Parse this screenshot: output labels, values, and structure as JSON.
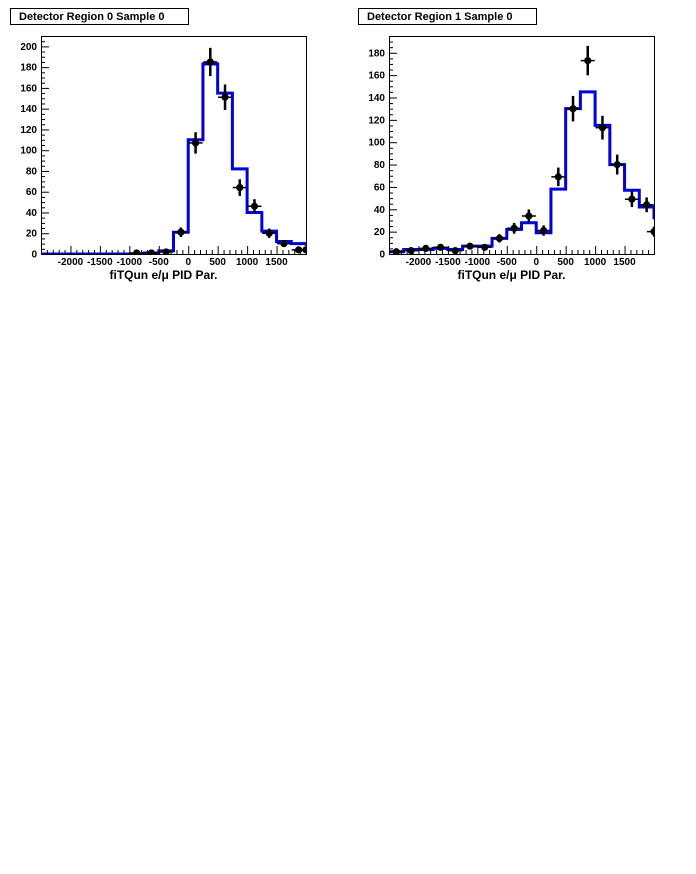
{
  "chart_data": [
    {
      "type": "histogram",
      "title": "Detector Region 0 Sample 0",
      "xlabel": "fiTQun e/μ PID Par.",
      "ylabel": "",
      "xlim": [
        -2500,
        2000
      ],
      "ylim": [
        0,
        210
      ],
      "xticks": [
        -2000,
        -1500,
        -1000,
        -500,
        0,
        500,
        1000,
        1500
      ],
      "yticks": [
        0,
        20,
        40,
        60,
        80,
        100,
        120,
        140,
        160,
        180,
        200
      ],
      "grid": false,
      "bin_edges": [
        -2500,
        -2250,
        -2000,
        -1750,
        -1500,
        -1250,
        -1000,
        -750,
        -500,
        -250,
        0,
        250,
        500,
        750,
        1000,
        1250,
        1500,
        1750,
        2000
      ],
      "series": [
        {
          "kind": "step-histogram",
          "color": "#0000dd",
          "values": [
            0,
            0,
            0,
            0,
            0,
            0,
            0,
            1,
            3,
            21,
            110,
            183,
            155,
            82,
            40,
            22,
            12,
            10,
            8
          ]
        },
        {
          "kind": "points-with-errors",
          "color": "#000000",
          "points": [
            {
              "x": -875,
              "y": 1,
              "err": 1
            },
            {
              "x": -625,
              "y": 1,
              "err": 1
            },
            {
              "x": -375,
              "y": 2,
              "err": 1.5
            },
            {
              "x": -125,
              "y": 21,
              "err": 4.6
            },
            {
              "x": 125,
              "y": 107,
              "err": 10.3
            },
            {
              "x": 375,
              "y": 185,
              "err": 13.6
            },
            {
              "x": 625,
              "y": 151,
              "err": 12.3
            },
            {
              "x": 875,
              "y": 64,
              "err": 8
            },
            {
              "x": 1125,
              "y": 46,
              "err": 6.8
            },
            {
              "x": 1375,
              "y": 20,
              "err": 4.5
            },
            {
              "x": 1625,
              "y": 10,
              "err": 3.2
            },
            {
              "x": 1875,
              "y": 4,
              "err": 2
            },
            {
              "x": 2000,
              "y": 4,
              "err": 2
            }
          ]
        }
      ]
    },
    {
      "type": "histogram",
      "title": "Detector Region 1 Sample 0",
      "xlabel": "fiTQun e/μ PID Par.",
      "ylabel": "",
      "xlim": [
        -2500,
        2000
      ],
      "ylim": [
        0,
        195
      ],
      "xticks": [
        -2000,
        -1500,
        -1000,
        -500,
        0,
        500,
        1000,
        1500
      ],
      "yticks": [
        0,
        20,
        40,
        60,
        80,
        100,
        120,
        140,
        160,
        180
      ],
      "grid": false,
      "bin_edges": [
        -2500,
        -2250,
        -2000,
        -1750,
        -1500,
        -1250,
        -1000,
        -750,
        -500,
        -250,
        0,
        250,
        500,
        750,
        1000,
        1250,
        1500,
        1750,
        2000
      ],
      "series": [
        {
          "kind": "step-histogram",
          "color": "#0000dd",
          "values": [
            2,
            4,
            4,
            5,
            4,
            7,
            7,
            14,
            22,
            28,
            19,
            58,
            130,
            145,
            115,
            80,
            57,
            42,
            31
          ]
        },
        {
          "kind": "points-with-errors",
          "color": "#000000",
          "points": [
            {
              "x": -2375,
              "y": 2,
              "err": 1.5
            },
            {
              "x": -2125,
              "y": 3,
              "err": 1.7
            },
            {
              "x": -1875,
              "y": 5,
              "err": 2.2
            },
            {
              "x": -1625,
              "y": 6,
              "err": 2.4
            },
            {
              "x": -1375,
              "y": 3,
              "err": 1.7
            },
            {
              "x": -1125,
              "y": 7,
              "err": 2.6
            },
            {
              "x": -875,
              "y": 6,
              "err": 2.4
            },
            {
              "x": -625,
              "y": 14,
              "err": 3.7
            },
            {
              "x": -375,
              "y": 23,
              "err": 4.8
            },
            {
              "x": -125,
              "y": 34,
              "err": 5.8
            },
            {
              "x": 125,
              "y": 21,
              "err": 4.6
            },
            {
              "x": 375,
              "y": 69,
              "err": 8.3
            },
            {
              "x": 625,
              "y": 130,
              "err": 11.4
            },
            {
              "x": 875,
              "y": 173,
              "err": 13.2
            },
            {
              "x": 1125,
              "y": 113,
              "err": 10.6
            },
            {
              "x": 1375,
              "y": 80,
              "err": 8.9
            },
            {
              "x": 1625,
              "y": 49,
              "err": 7
            },
            {
              "x": 1875,
              "y": 44,
              "err": 6.6
            },
            {
              "x": 2000,
              "y": 20,
              "err": 4.5
            }
          ]
        }
      ]
    }
  ]
}
